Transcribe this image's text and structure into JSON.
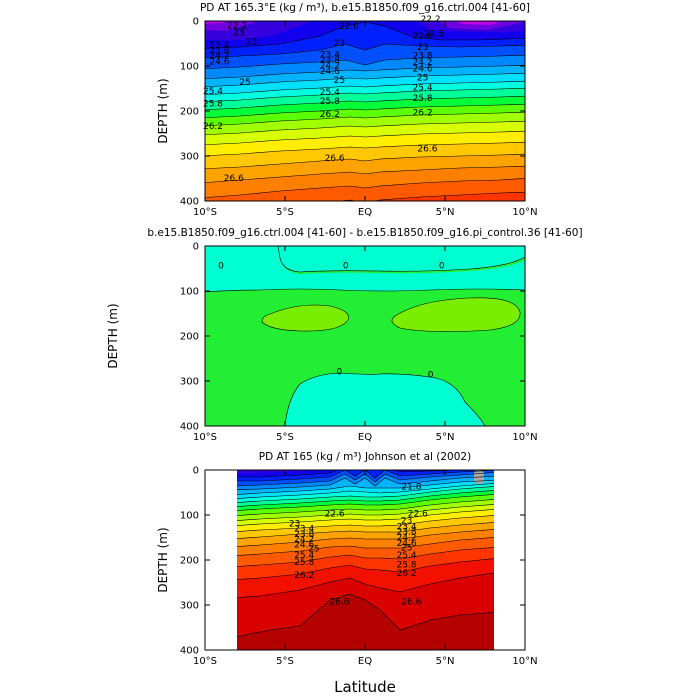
{
  "figure": {
    "xlabel": "Latitude"
  },
  "chart_data": [
    {
      "type": "heatmap",
      "title": "PD AT 165.3°E (kg / m³), b.e15.B1850.f09_g16.ctrl.004 [41-60]",
      "xlabel": "",
      "ylabel": "DEPTH (m)",
      "xlim": [
        -10,
        10
      ],
      "ylim": [
        400,
        0
      ],
      "xticks": [
        "10°S",
        "5°S",
        "EQ",
        "5°N",
        "10°N"
      ],
      "yticks": [
        "0",
        "100",
        "200",
        "300",
        "400"
      ],
      "contour_labels": [
        {
          "text": "22.2",
          "lat": -8.0,
          "depth": 10
        },
        {
          "text": "23",
          "lat": -7.9,
          "depth": 25
        },
        {
          "text": "22.6",
          "lat": -1.0,
          "depth": 11
        },
        {
          "text": "22.2",
          "lat": 4.1,
          "depth": -5
        },
        {
          "text": "22.6",
          "lat": 3.6,
          "depth": 33
        },
        {
          "text": "22.6",
          "lat": 4.3,
          "depth": 28
        },
        {
          "text": "23",
          "lat": -7.1,
          "depth": 45
        },
        {
          "text": "23",
          "lat": -1.6,
          "depth": 49
        },
        {
          "text": "23",
          "lat": 3.6,
          "depth": 58
        },
        {
          "text": "23.4",
          "lat": -9.1,
          "depth": 53
        },
        {
          "text": "23.8",
          "lat": -9.1,
          "depth": 65
        },
        {
          "text": "24.2",
          "lat": -9.1,
          "depth": 77
        },
        {
          "text": "24.6",
          "lat": -9.1,
          "depth": 90
        },
        {
          "text": "23.4",
          "lat": -2.2,
          "depth": 74
        },
        {
          "text": "23.8",
          "lat": -2.2,
          "depth": 87
        },
        {
          "text": "24.2",
          "lat": -2.2,
          "depth": 99
        },
        {
          "text": "24.6",
          "lat": -2.2,
          "depth": 111
        },
        {
          "text": "25",
          "lat": -7.5,
          "depth": 135
        },
        {
          "text": "25",
          "lat": -1.6,
          "depth": 131
        },
        {
          "text": "23.8",
          "lat": 3.6,
          "depth": 77
        },
        {
          "text": "24.2",
          "lat": 3.6,
          "depth": 91
        },
        {
          "text": "24.6",
          "lat": 3.6,
          "depth": 105
        },
        {
          "text": "25.4",
          "lat": -9.5,
          "depth": 155
        },
        {
          "text": "25.8",
          "lat": -9.5,
          "depth": 183
        },
        {
          "text": "25.4",
          "lat": -2.2,
          "depth": 158
        },
        {
          "text": "25.8",
          "lat": -2.2,
          "depth": 178
        },
        {
          "text": "25",
          "lat": 3.6,
          "depth": 126
        },
        {
          "text": "25.4",
          "lat": 3.6,
          "depth": 148
        },
        {
          "text": "25.8",
          "lat": 3.6,
          "depth": 171
        },
        {
          "text": "26.2",
          "lat": -2.2,
          "depth": 207
        },
        {
          "text": "26.2",
          "lat": 3.6,
          "depth": 203
        },
        {
          "text": "26.2",
          "lat": -9.5,
          "depth": 233
        },
        {
          "text": "26.6",
          "lat": -1.9,
          "depth": 304
        },
        {
          "text": "26.6",
          "lat": 3.9,
          "depth": 283
        },
        {
          "text": "26.6",
          "lat": -8.2,
          "depth": 349
        }
      ]
    },
    {
      "type": "heatmap",
      "title": "b.e15.B1850.f09_g16.ctrl.004 [41-60] - b.e15.B1850.f09_g16.pi_control.36 [41-60]",
      "xlabel": "",
      "ylabel": "DEPTH (m)",
      "xlim": [
        -10,
        10
      ],
      "ylim": [
        400,
        0
      ],
      "xticks": [
        "10°S",
        "5°S",
        "EQ",
        "5°N",
        "10°N"
      ],
      "yticks": [
        "0",
        "100",
        "200",
        "300",
        "400"
      ],
      "contour_labels": [
        {
          "text": "0",
          "lat": -9.0,
          "depth": 43
        },
        {
          "text": "0",
          "lat": -1.2,
          "depth": 43
        },
        {
          "text": "0",
          "lat": 4.8,
          "depth": 43
        },
        {
          "text": "0",
          "lat": -1.6,
          "depth": 279
        },
        {
          "text": "0",
          "lat": 4.1,
          "depth": 286
        }
      ]
    },
    {
      "type": "heatmap",
      "title": "PD AT 165 (kg / m³) Johnson et al (2002)",
      "xlabel": "Latitude",
      "ylabel": "DEPTH (m)",
      "xlim": [
        -10,
        10
      ],
      "ylim": [
        400,
        0
      ],
      "xticks": [
        "10°S",
        "5°S",
        "EQ",
        "5°N",
        "10°N"
      ],
      "yticks": [
        "0",
        "100",
        "200",
        "300",
        "400"
      ],
      "contour_labels": [
        {
          "text": "21.8",
          "lat": 2.9,
          "depth": 37
        },
        {
          "text": "22.6",
          "lat": -1.9,
          "depth": 97
        },
        {
          "text": "22.6",
          "lat": 3.3,
          "depth": 97
        },
        {
          "text": "23",
          "lat": -4.4,
          "depth": 119
        },
        {
          "text": "23",
          "lat": 2.6,
          "depth": 112
        },
        {
          "text": "23.4",
          "lat": -3.8,
          "depth": 130
        },
        {
          "text": "23.8",
          "lat": -3.8,
          "depth": 142
        },
        {
          "text": "24.2",
          "lat": -3.8,
          "depth": 153
        },
        {
          "text": "24.6",
          "lat": -3.8,
          "depth": 165
        },
        {
          "text": "23.4",
          "lat": 2.6,
          "depth": 126
        },
        {
          "text": "23.8",
          "lat": 2.6,
          "depth": 137
        },
        {
          "text": "24.2",
          "lat": 2.6,
          "depth": 150
        },
        {
          "text": "24.6",
          "lat": 2.6,
          "depth": 162
        },
        {
          "text": "25",
          "lat": -3.2,
          "depth": 174
        },
        {
          "text": "25",
          "lat": 2.6,
          "depth": 172
        },
        {
          "text": "25.4",
          "lat": -3.8,
          "depth": 189
        },
        {
          "text": "25.8",
          "lat": -3.8,
          "depth": 204
        },
        {
          "text": "26.2",
          "lat": -3.8,
          "depth": 233
        },
        {
          "text": "25.4",
          "lat": 2.6,
          "depth": 189
        },
        {
          "text": "25.8",
          "lat": 2.6,
          "depth": 210
        },
        {
          "text": "26.2",
          "lat": 2.6,
          "depth": 229
        },
        {
          "text": "26.6",
          "lat": -1.6,
          "depth": 292
        },
        {
          "text": "26.6",
          "lat": 2.9,
          "depth": 292
        }
      ]
    }
  ]
}
